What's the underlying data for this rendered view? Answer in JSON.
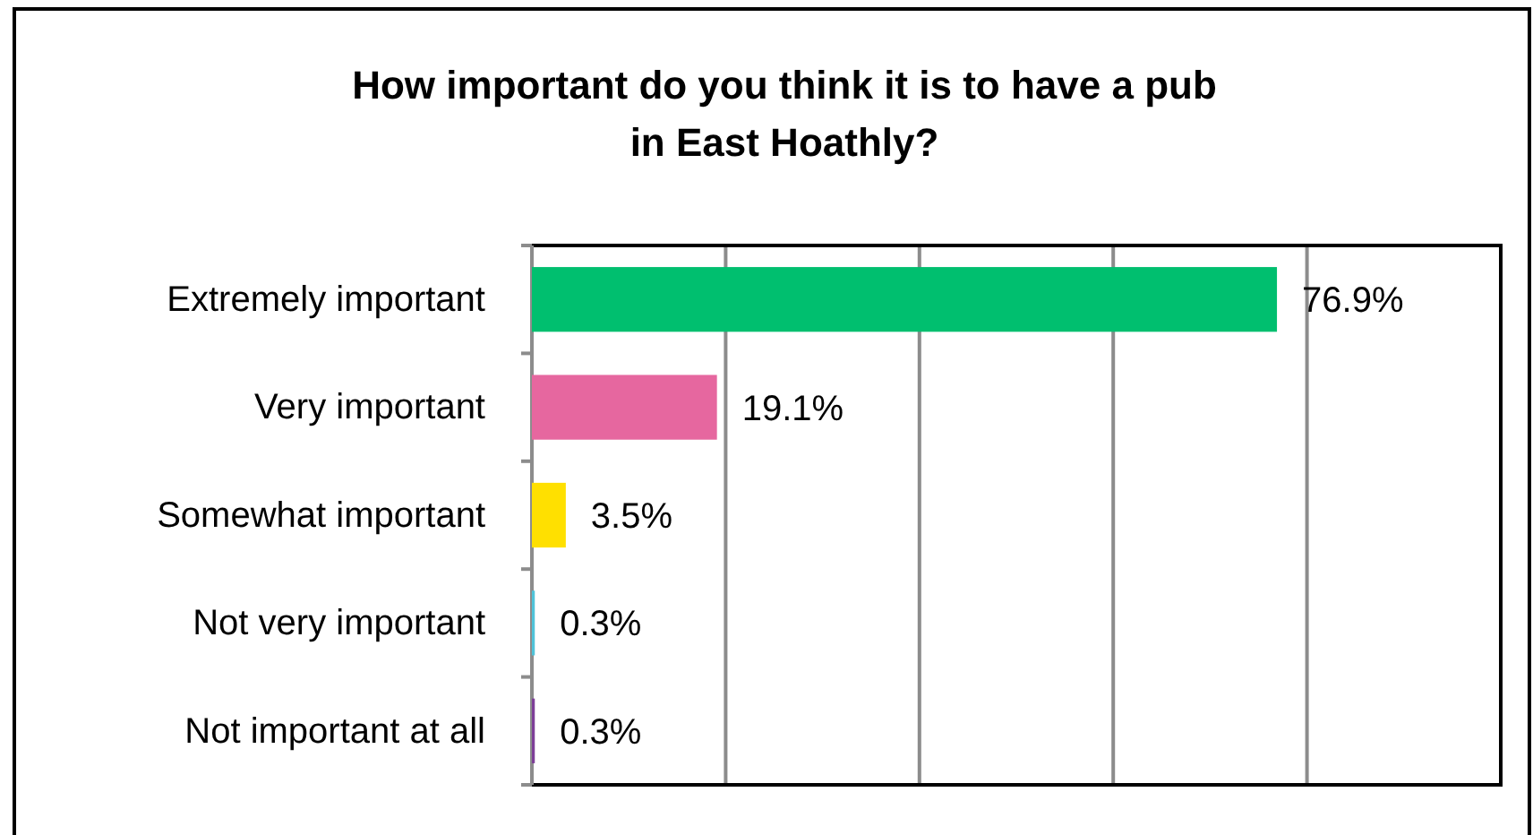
{
  "chart_data": {
    "type": "bar",
    "orientation": "horizontal",
    "title": "How important do you think it is to have a pub in East Hoathly?",
    "categories": [
      "Extremely important",
      "Very important",
      "Somewhat important",
      "Not very important",
      "Not important at all"
    ],
    "values": [
      76.9,
      19.1,
      3.5,
      0.3,
      0.3
    ],
    "colors": [
      "#00bf6f",
      "#e6679f",
      "#ffe000",
      "#4fc3d9",
      "#7d3f98"
    ],
    "value_labels": [
      "76.9%",
      "19.1%",
      "3.5%",
      "0.3%",
      "0.3%"
    ],
    "xlim": [
      0,
      100
    ],
    "xticks": [
      {
        "value": 0,
        "label": null
      },
      {
        "value": 20,
        "label": null
      },
      {
        "value": 40,
        "label": null
      },
      {
        "value": 60,
        "label": null
      },
      {
        "value": 80,
        "label": null
      },
      {
        "value": 100,
        "label": null
      }
    ],
    "tick_labels": "y",
    "grid": "x"
  }
}
